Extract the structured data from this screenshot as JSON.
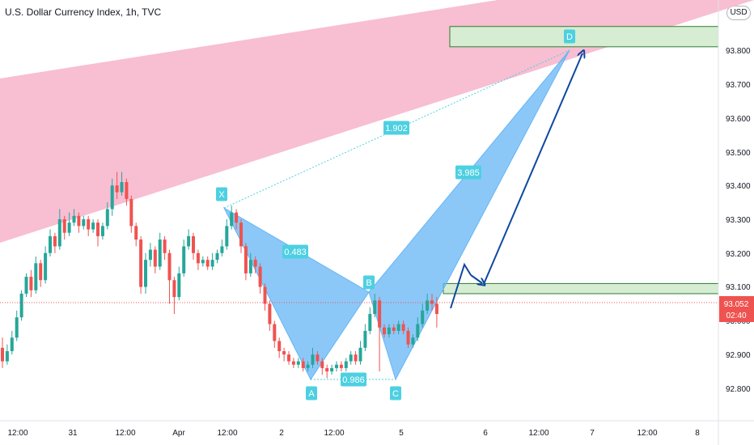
{
  "title": "U.S. Dollar Currency Index, 1h, TVC",
  "currency_badge": "USD",
  "chart_data": {
    "type": "candlestick",
    "title": "U.S. Dollar Currency Index, 1h, TVC",
    "ylim": [
      92.72,
      94.0
    ],
    "price_ticks": [
      "93.800",
      "93.700",
      "93.600",
      "93.500",
      "93.400",
      "93.300",
      "93.200",
      "93.100",
      "93.000",
      "92.900",
      "92.800"
    ],
    "time_ticks": [
      "12:00",
      "31",
      "12:00",
      "Apr",
      "12:00",
      "2",
      "12:00",
      "5",
      "6",
      "12:00",
      "7",
      "12:00",
      "8"
    ],
    "last_price": "93.052",
    "countdown": "02:40",
    "harmonic_pattern": {
      "points": [
        {
          "label": "X",
          "price": 93.34
        },
        {
          "label": "A",
          "price": 92.83
        },
        {
          "label": "B",
          "price": 93.08
        },
        {
          "label": "C",
          "price": 92.83
        },
        {
          "label": "D",
          "price": 93.81
        }
      ],
      "ratios": [
        "0.483",
        "0.986",
        "3.985",
        "1.902"
      ]
    },
    "zones": [
      {
        "name": "upper",
        "low": 93.81,
        "high": 93.87
      },
      {
        "name": "lower",
        "low": 93.08,
        "high": 93.11
      }
    ],
    "candles": [
      [
        92.92,
        92.88,
        92.95,
        92.86
      ],
      [
        92.88,
        92.91,
        92.93,
        92.87
      ],
      [
        92.91,
        92.95,
        92.97,
        92.9
      ],
      [
        92.95,
        93.01,
        93.03,
        92.94
      ],
      [
        93.01,
        93.08,
        93.09,
        93
      ],
      [
        93.08,
        93.13,
        93.14,
        93.07
      ],
      [
        93.13,
        93.09,
        93.15,
        93.07
      ],
      [
        93.09,
        93.17,
        93.19,
        93.08
      ],
      [
        93.17,
        93.12,
        93.18,
        93.1
      ],
      [
        93.12,
        93.2,
        93.22,
        93.11
      ],
      [
        93.2,
        93.25,
        93.27,
        93.19
      ],
      [
        93.25,
        93.22,
        93.26,
        93.2
      ],
      [
        93.22,
        93.3,
        93.33,
        93.21
      ],
      [
        93.3,
        93.26,
        93.31,
        93.24
      ],
      [
        93.26,
        93.29,
        93.32,
        93.25
      ],
      [
        93.29,
        93.31,
        93.33,
        93.28
      ],
      [
        93.31,
        93.28,
        93.32,
        93.26
      ],
      [
        93.28,
        93.3,
        93.31,
        93.27
      ],
      [
        93.3,
        93.27,
        93.31,
        93.25
      ],
      [
        93.27,
        93.29,
        93.3,
        93.26
      ],
      [
        93.29,
        93.25,
        93.3,
        93.22
      ],
      [
        93.25,
        93.28,
        93.29,
        93.24
      ],
      [
        93.28,
        93.33,
        93.35,
        93.27
      ],
      [
        93.33,
        93.4,
        93.42,
        93.31
      ],
      [
        93.4,
        93.38,
        93.44,
        93.36
      ],
      [
        93.38,
        93.41,
        93.44,
        93.37
      ],
      [
        93.41,
        93.36,
        93.42,
        93.34
      ],
      [
        93.36,
        93.28,
        93.37,
        93.26
      ],
      [
        93.28,
        93.24,
        93.29,
        93.22
      ],
      [
        93.24,
        93.1,
        93.25,
        93.08
      ],
      [
        93.1,
        93.18,
        93.2,
        93.08
      ],
      [
        93.18,
        93.21,
        93.23,
        93.16
      ],
      [
        93.21,
        93.16,
        93.22,
        93.14
      ],
      [
        93.16,
        93.24,
        93.26,
        93.15
      ],
      [
        93.24,
        93.2,
        93.25,
        93.18
      ],
      [
        93.2,
        93.12,
        93.21,
        93.05
      ],
      [
        93.12,
        93.07,
        93.13,
        93.02
      ],
      [
        93.07,
        93.14,
        93.16,
        93.06
      ],
      [
        93.14,
        93.22,
        93.24,
        93.13
      ],
      [
        93.22,
        93.25,
        93.27,
        93.21
      ],
      [
        93.25,
        93.2,
        93.26,
        93.18
      ],
      [
        93.2,
        93.17,
        93.21,
        93.15
      ],
      [
        93.17,
        93.18,
        93.19,
        93.16
      ],
      [
        93.18,
        93.16,
        93.19,
        93.15
      ],
      [
        93.16,
        93.18,
        93.2,
        93.15
      ],
      [
        93.18,
        93.2,
        93.21,
        93.17
      ],
      [
        93.2,
        93.22,
        93.24,
        93.19
      ],
      [
        93.22,
        93.28,
        93.3,
        93.21
      ],
      [
        93.28,
        93.32,
        93.34,
        93.27
      ],
      [
        93.32,
        93.29,
        93.33,
        93.27
      ],
      [
        93.29,
        93.22,
        93.3,
        93.2
      ],
      [
        93.22,
        93.14,
        93.23,
        93.12
      ],
      [
        93.14,
        93.18,
        93.2,
        93.13
      ],
      [
        93.18,
        93.16,
        93.19,
        93.14
      ],
      [
        93.16,
        93.1,
        93.17,
        93.08
      ],
      [
        93.1,
        93.05,
        93.11,
        93.03
      ],
      [
        93.05,
        92.99,
        93.06,
        92.97
      ],
      [
        92.99,
        92.94,
        93,
        92.92
      ],
      [
        92.94,
        92.91,
        92.95,
        92.89
      ],
      [
        92.91,
        92.9,
        92.92,
        92.88
      ],
      [
        92.9,
        92.88,
        92.91,
        92.87
      ],
      [
        92.88,
        92.87,
        92.89,
        92.86
      ],
      [
        92.87,
        92.88,
        92.89,
        92.86
      ],
      [
        92.88,
        92.86,
        92.89,
        92.85
      ],
      [
        92.86,
        92.87,
        92.88,
        92.85
      ],
      [
        92.87,
        92.9,
        92.92,
        92.86
      ],
      [
        92.9,
        92.88,
        92.91,
        92.87
      ],
      [
        92.88,
        92.86,
        92.89,
        92.84
      ],
      [
        92.86,
        92.85,
        92.87,
        92.83
      ],
      [
        92.85,
        92.86,
        92.87,
        92.84
      ],
      [
        92.86,
        92.87,
        92.88,
        92.85
      ],
      [
        92.87,
        92.86,
        92.88,
        92.85
      ],
      [
        92.86,
        92.88,
        92.89,
        92.85
      ],
      [
        92.88,
        92.9,
        92.91,
        92.87
      ],
      [
        92.9,
        92.88,
        92.91,
        92.87
      ],
      [
        92.88,
        92.92,
        92.94,
        92.87
      ],
      [
        92.92,
        92.97,
        92.99,
        92.91
      ],
      [
        92.97,
        93.02,
        93.04,
        92.96
      ],
      [
        93.02,
        93.06,
        93.08,
        93.01
      ],
      [
        93.06,
        92.98,
        93.07,
        92.85
      ],
      [
        92.98,
        92.96,
        92.99,
        92.95
      ],
      [
        92.96,
        92.98,
        92.99,
        92.95
      ],
      [
        92.98,
        92.97,
        92.99,
        92.96
      ],
      [
        92.97,
        92.99,
        93,
        92.96
      ],
      [
        92.99,
        92.97,
        93,
        92.96
      ],
      [
        92.97,
        92.93,
        92.98,
        92.92
      ],
      [
        92.93,
        92.95,
        92.96,
        92.92
      ],
      [
        92.95,
        92.99,
        93.01,
        92.94
      ],
      [
        92.99,
        93.03,
        93.05,
        92.98
      ],
      [
        93.03,
        93.06,
        93.08,
        93.02
      ],
      [
        93.06,
        93.05,
        93.08,
        93.03
      ],
      [
        93.05,
        93.02,
        93.07,
        92.98
      ]
    ]
  }
}
